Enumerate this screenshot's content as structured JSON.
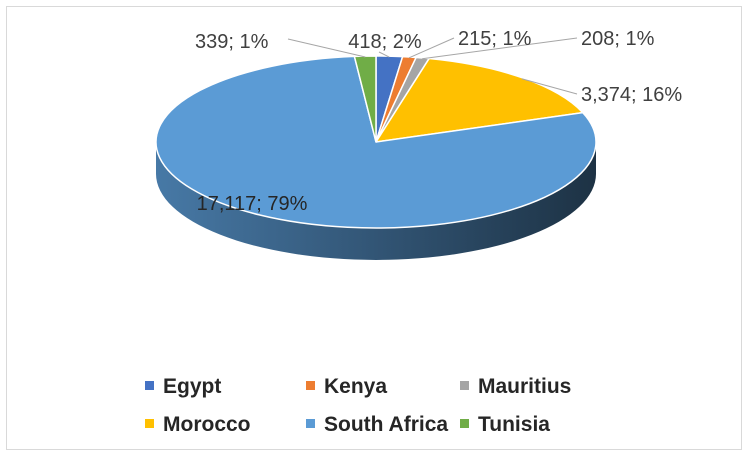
{
  "chart_data": {
    "type": "pie",
    "style": "3d",
    "title": "",
    "categories": [
      "Egypt",
      "Kenya",
      "Mauritius",
      "Morocco",
      "South Africa",
      "Tunisia"
    ],
    "values": [
      418,
      215,
      208,
      3374,
      17117,
      339
    ],
    "percent_labels": [
      "2%",
      "1%",
      "1%",
      "16%",
      "79%",
      "1%"
    ],
    "data_labels": [
      "418; 2%",
      "215; 1%",
      "208; 1%",
      "3,374; 16%",
      "17,117; 79%",
      "339; 1%"
    ],
    "colors": [
      "#4472C4",
      "#ED7D31",
      "#A5A5A5",
      "#FFC000",
      "#5B9BD5",
      "#70AD47"
    ],
    "legend": {
      "position": "bottom",
      "entries": [
        "Egypt",
        "Kenya",
        "Mauritius",
        "Morocco",
        "South Africa",
        "Tunisia"
      ]
    }
  }
}
